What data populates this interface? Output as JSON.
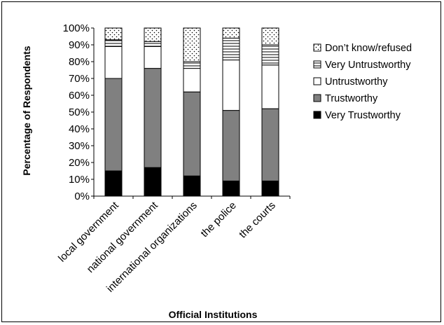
{
  "chart_data": {
    "type": "bar",
    "stacked": true,
    "categories": [
      "local government",
      "national government",
      "international organizations",
      "the police",
      "the courts"
    ],
    "series": [
      {
        "name": "Very Trustworthy",
        "values": [
          15,
          17,
          12,
          9,
          9
        ],
        "color": "#000000",
        "pattern": "solid"
      },
      {
        "name": "Trustworthy",
        "values": [
          55,
          59,
          50,
          42,
          43
        ],
        "color": "#808080",
        "pattern": "solid"
      },
      {
        "name": "Untrustworthy",
        "values": [
          19,
          13,
          14,
          30,
          26
        ],
        "color": "#ffffff",
        "pattern": "solid"
      },
      {
        "name": "Very Untrustworthy",
        "values": [
          4,
          3,
          4,
          13,
          12
        ],
        "color": "#ffffff",
        "pattern": "horizontal-lines"
      },
      {
        "name": "Don’t know/refused",
        "values": [
          7,
          8,
          20,
          6,
          10
        ],
        "color": "#ffffff",
        "pattern": "dots"
      }
    ],
    "xlabel": "Official Institutions",
    "ylabel": "Percentage of Respondents",
    "ylim": [
      0,
      100
    ],
    "yticks": [
      "0%",
      "10%",
      "20%",
      "30%",
      "40%",
      "50%",
      "60%",
      "70%",
      "80%",
      "90%",
      "100%"
    ],
    "grid": false,
    "legend": "right",
    "legend_order": [
      "Don’t know/refused",
      "Very Untrustworthy",
      "Untrustworthy",
      "Trustworthy",
      "Very Trustworthy"
    ]
  }
}
